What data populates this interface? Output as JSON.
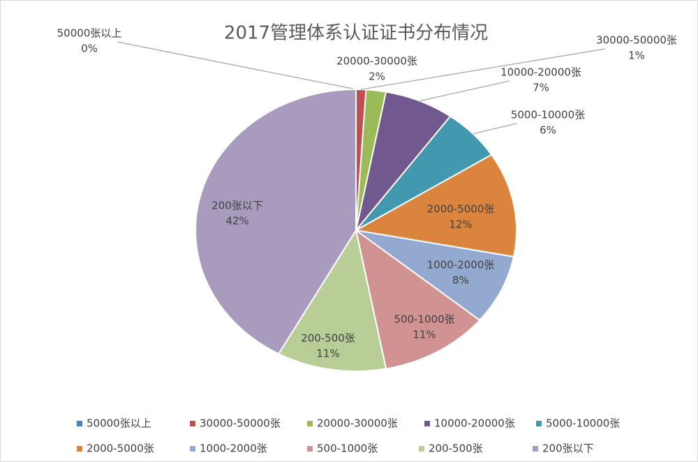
{
  "chart_data": {
    "type": "pie",
    "title": "2017管理体系认证证书分布情况",
    "categories": [
      "50000张以上",
      "30000-50000张",
      "20000-30000张",
      "10000-20000张",
      "5000-10000张",
      "2000-5000张",
      "1000-2000张",
      "500-1000张",
      "200-500张",
      "200张以下"
    ],
    "values": [
      0,
      1,
      2,
      7,
      6,
      12,
      8,
      11,
      11,
      42
    ],
    "value_labels": [
      "0%",
      "1%",
      "2%",
      "7%",
      "6%",
      "12%",
      "8%",
      "11%",
      "11%",
      "42%"
    ],
    "colors": [
      "#4f81bd",
      "#c0504d",
      "#9bbb59",
      "#71588f",
      "#4198af",
      "#db843d",
      "#93a9cf",
      "#d19392",
      "#b9cd96",
      "#a99bbd"
    ],
    "legend": "bottom"
  }
}
